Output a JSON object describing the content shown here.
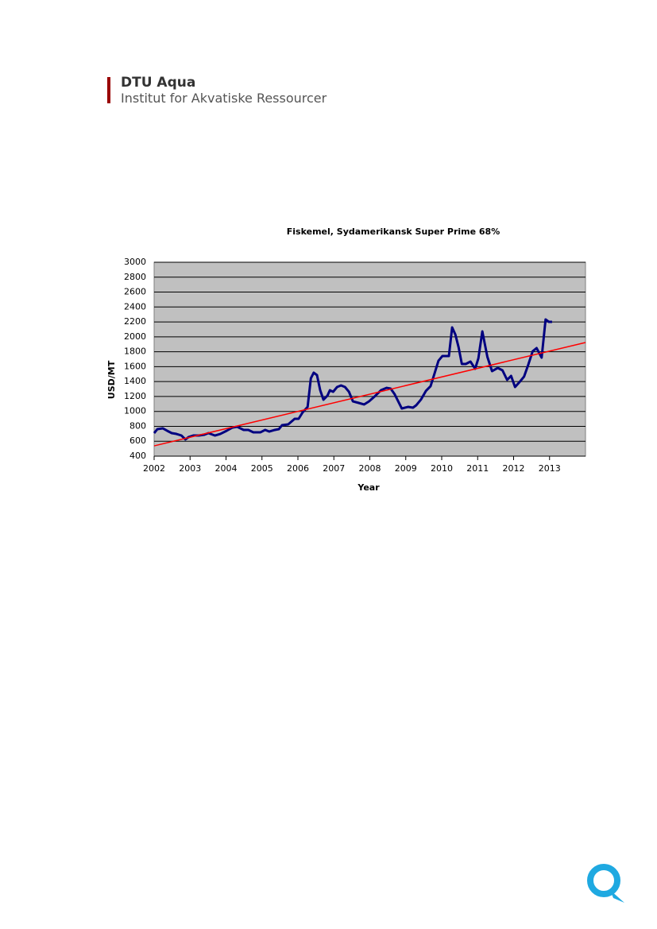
{
  "header": {
    "title": "DTU Aqua",
    "subtitle": "Institut for Akvatiske Ressourcer"
  },
  "chart_data": {
    "type": "line",
    "title": "Fiskemel, Sydamerikansk Super Prime 68%",
    "x_label": "Year",
    "y_label": "USD/MT",
    "xlim": [
      2002,
      2014
    ],
    "xticks": [
      2002,
      2003,
      2004,
      2005,
      2006,
      2007,
      2008,
      2009,
      2010,
      2011,
      2012,
      2013
    ],
    "ylim": [
      400,
      3000
    ],
    "yticks": [
      400,
      600,
      800,
      1000,
      1200,
      1400,
      1600,
      1800,
      2000,
      2200,
      2400,
      2600,
      2800,
      3000
    ],
    "grid": true,
    "plot_background": "#c0c0c0",
    "series": [
      {
        "color": "#000080",
        "x": [
          2002.0,
          2002.09,
          2002.24,
          2002.36,
          2002.49,
          2002.62,
          2002.76,
          2002.87,
          2002.96,
          2003.09,
          2003.24,
          2003.4,
          2003.51,
          2003.69,
          2003.84,
          2004.02,
          2004.18,
          2004.31,
          2004.49,
          2004.62,
          2004.76,
          2004.96,
          2005.09,
          2005.2,
          2005.36,
          2005.47,
          2005.56,
          2005.73,
          2005.91,
          2006.02,
          2006.13,
          2006.27,
          2006.36,
          2006.44,
          2006.53,
          2006.62,
          2006.71,
          2006.82,
          2006.89,
          2006.98,
          2007.09,
          2007.2,
          2007.31,
          2007.42,
          2007.53,
          2007.69,
          2007.84,
          2007.98,
          2008.13,
          2008.31,
          2008.47,
          2008.58,
          2008.69,
          2008.8,
          2008.89,
          2009.07,
          2009.2,
          2009.29,
          2009.42,
          2009.56,
          2009.69,
          2009.8,
          2009.91,
          2010.02,
          2010.2,
          2010.29,
          2010.38,
          2010.47,
          2010.56,
          2010.67,
          2010.8,
          2010.93,
          2011.02,
          2011.13,
          2011.27,
          2011.4,
          2011.56,
          2011.69,
          2011.82,
          2011.93,
          2012.04,
          2012.18,
          2012.29,
          2012.4,
          2012.53,
          2012.64,
          2012.78,
          2012.89,
          2012.98,
          2013.07
        ],
        "values": [
          709,
          762,
          773,
          741,
          709,
          698,
          677,
          624,
          656,
          677,
          677,
          688,
          709,
          677,
          698,
          741,
          784,
          794,
          752,
          752,
          720,
          720,
          752,
          730,
          752,
          762,
          816,
          826,
          901,
          901,
          986,
          1061,
          1444,
          1519,
          1487,
          1284,
          1157,
          1210,
          1284,
          1263,
          1327,
          1348,
          1327,
          1263,
          1135,
          1114,
          1093,
          1135,
          1199,
          1284,
          1316,
          1306,
          1231,
          1125,
          1039,
          1061,
          1050,
          1082,
          1157,
          1274,
          1338,
          1508,
          1679,
          1743,
          1743,
          2126,
          2030,
          1860,
          1636,
          1636,
          1668,
          1572,
          1711,
          2073,
          1732,
          1540,
          1583,
          1551,
          1423,
          1476,
          1327,
          1402,
          1466,
          1615,
          1806,
          1849,
          1721,
          2233,
          2201,
          2201
        ]
      },
      {
        "color": "#ff0000",
        "x": [
          2002,
          2014
        ],
        "values": [
          538,
          1924
        ]
      }
    ]
  }
}
